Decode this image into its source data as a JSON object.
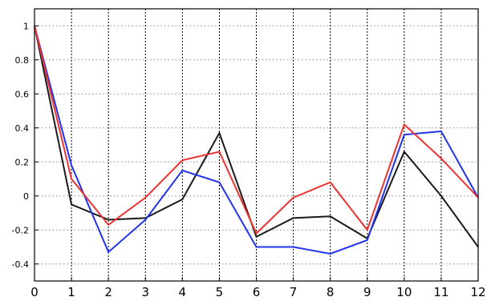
{
  "chart_data": {
    "type": "line",
    "title": "",
    "xlabel": "",
    "ylabel": "",
    "x": [
      0,
      1,
      2,
      3,
      4,
      5,
      6,
      7,
      8,
      9,
      10,
      11,
      12
    ],
    "xlim": [
      0,
      12
    ],
    "ylim": [
      -0.5,
      1.1
    ],
    "x_ticks": [
      "0",
      "1",
      "2",
      "3",
      "4",
      "5",
      "6",
      "7",
      "8",
      "9",
      "10",
      "11",
      "12"
    ],
    "y_ticks": [
      1,
      0.8,
      0.6,
      0.4,
      0.2,
      0,
      -0.2,
      -0.4
    ],
    "y_tick_labels": [
      "1",
      "0.8",
      "0.6",
      "0.4",
      "0.2",
      "0",
      "-0.2",
      "-0.4"
    ],
    "grid": "dotted",
    "series": [
      {
        "color": "#1a1a1a",
        "values": [
          1.0,
          -0.05,
          -0.14,
          -0.13,
          -0.02,
          0.37,
          -0.24,
          -0.13,
          -0.12,
          -0.25,
          0.26,
          0.0,
          -0.3
        ]
      },
      {
        "color": "#2233ee",
        "values": [
          1.0,
          0.18,
          -0.33,
          -0.14,
          0.15,
          0.08,
          -0.3,
          -0.3,
          -0.34,
          -0.26,
          0.36,
          0.38,
          -0.01
        ]
      },
      {
        "color": "#ee3333",
        "values": [
          1.0,
          0.1,
          -0.17,
          -0.01,
          0.21,
          0.26,
          -0.22,
          -0.01,
          0.08,
          -0.2,
          0.42,
          0.22,
          -0.01
        ]
      }
    ]
  }
}
